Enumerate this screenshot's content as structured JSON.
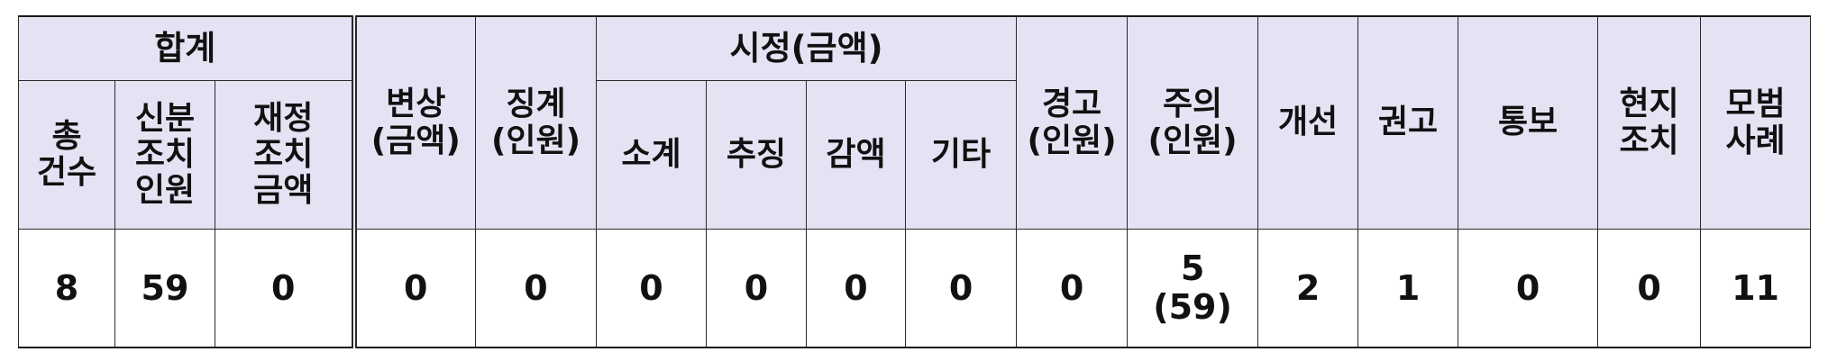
{
  "table": {
    "header": {
      "total": "합계",
      "total_count": [
        "총",
        "건수"
      ],
      "identity_action": [
        "신분",
        "조치",
        "인원"
      ],
      "financial_action": [
        "재정",
        "조치",
        "금액"
      ],
      "compensation": [
        "변상",
        "(금액)"
      ],
      "discipline": [
        "징계",
        "(인원)"
      ],
      "correction": "시정(금액)",
      "subtotal": "소계",
      "recovery": "추징",
      "reduction": "감액",
      "other": "기타",
      "warning": [
        "경고",
        "(인원)"
      ],
      "caution": [
        "주의",
        "(인원)"
      ],
      "improvement": "개선",
      "recommendation": "권고",
      "notification": "통보",
      "onsite_action": [
        "현지",
        "조치"
      ],
      "exemplary_case": [
        "모범",
        "사례"
      ]
    },
    "row": {
      "total_count": "8",
      "identity_action": "59",
      "financial_action": "0",
      "compensation": "0",
      "discipline": "0",
      "subtotal": "0",
      "recovery": "0",
      "reduction": "0",
      "other": "0",
      "warning": "0",
      "caution": "5",
      "caution_people": "(59)",
      "improvement": "2",
      "recommendation": "1",
      "notification": "0",
      "onsite_action": "0",
      "exemplary_case": "11"
    }
  }
}
